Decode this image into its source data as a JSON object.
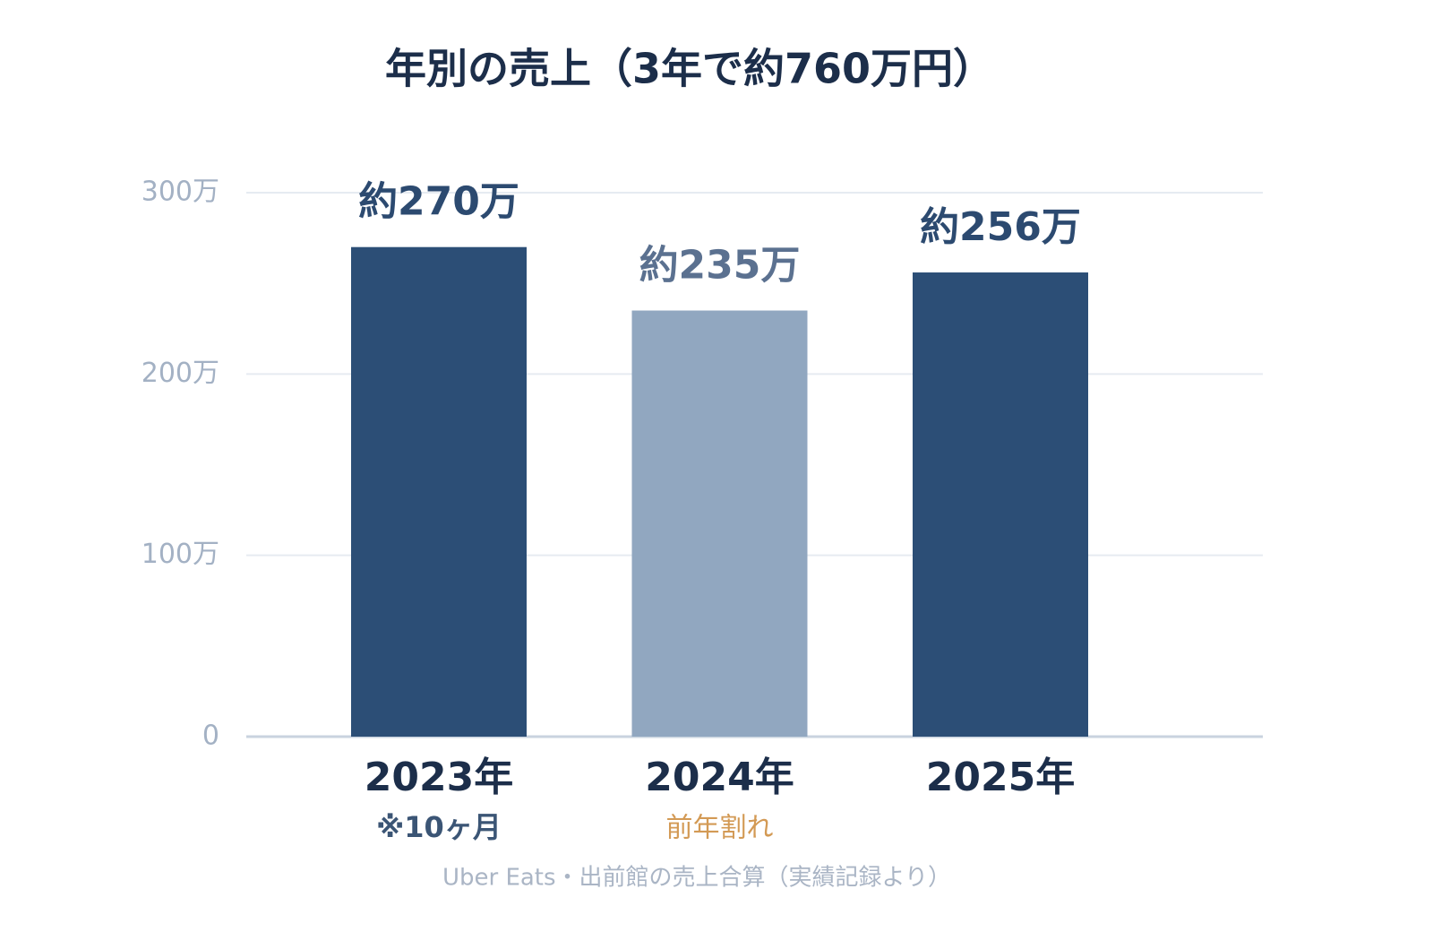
{
  "chart_data": {
    "type": "bar",
    "title": "年別の売上（3年で約760万円）",
    "categories": [
      "2023年",
      "2024年",
      "2025年"
    ],
    "sublabels": [
      "※10ヶ月",
      "前年割れ",
      null
    ],
    "sublabel_colors": [
      "#3b5575",
      "#d39a55",
      null
    ],
    "values": [
      270,
      235,
      256
    ],
    "value_labels": [
      "約270万",
      "約235万",
      "約256万"
    ],
    "colors": [
      "#2c4e76",
      "#91a7c0",
      "#2c4e76"
    ],
    "value_label_colors": [
      "#2c4a70",
      "#5b7190",
      "#2c4a70"
    ],
    "ylim": [
      0,
      300
    ],
    "yticks": [
      0,
      {
        "value": 100,
        "label": "100万"
      },
      {
        "value": 200,
        "label": "200万"
      },
      {
        "value": 300,
        "label": "300万"
      }
    ],
    "grid": true,
    "footnote": "Uber Eats・出前館の売上合算（実績記録より）"
  }
}
